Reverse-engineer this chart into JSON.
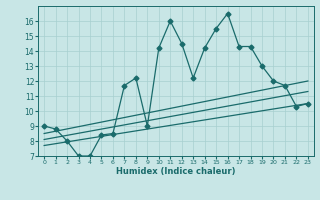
{
  "xlabel": "Humidex (Indice chaleur)",
  "background_color": "#c8e6e6",
  "grid_color": "#a8d0d0",
  "line_color": "#1a6b6b",
  "xlim": [
    -0.5,
    23.5
  ],
  "ylim": [
    7,
    17
  ],
  "yticks": [
    7,
    8,
    9,
    10,
    11,
    12,
    13,
    14,
    15,
    16
  ],
  "xticks": [
    0,
    1,
    2,
    3,
    4,
    5,
    6,
    7,
    8,
    9,
    10,
    11,
    12,
    13,
    14,
    15,
    16,
    17,
    18,
    19,
    20,
    21,
    22,
    23
  ],
  "series1_x": [
    0,
    1,
    2,
    3,
    4,
    5,
    6,
    7,
    8,
    9,
    10,
    11,
    12,
    13,
    14,
    15,
    16,
    17,
    18,
    19,
    20,
    21,
    22,
    23
  ],
  "series1_y": [
    9.0,
    8.8,
    8.0,
    7.0,
    7.0,
    8.4,
    8.5,
    11.7,
    12.2,
    9.0,
    14.2,
    16.0,
    14.5,
    12.2,
    14.2,
    15.5,
    16.5,
    14.3,
    14.3,
    13.0,
    12.0,
    11.7,
    10.3,
    10.5
  ],
  "series2_x": [
    0,
    23
  ],
  "series2_y": [
    8.5,
    12.0
  ],
  "series3_x": [
    0,
    23
  ],
  "series3_y": [
    8.1,
    11.3
  ],
  "series4_x": [
    0,
    23
  ],
  "series4_y": [
    7.7,
    10.5
  ],
  "marker": "D",
  "markersize": 2.5,
  "linewidth": 0.9
}
